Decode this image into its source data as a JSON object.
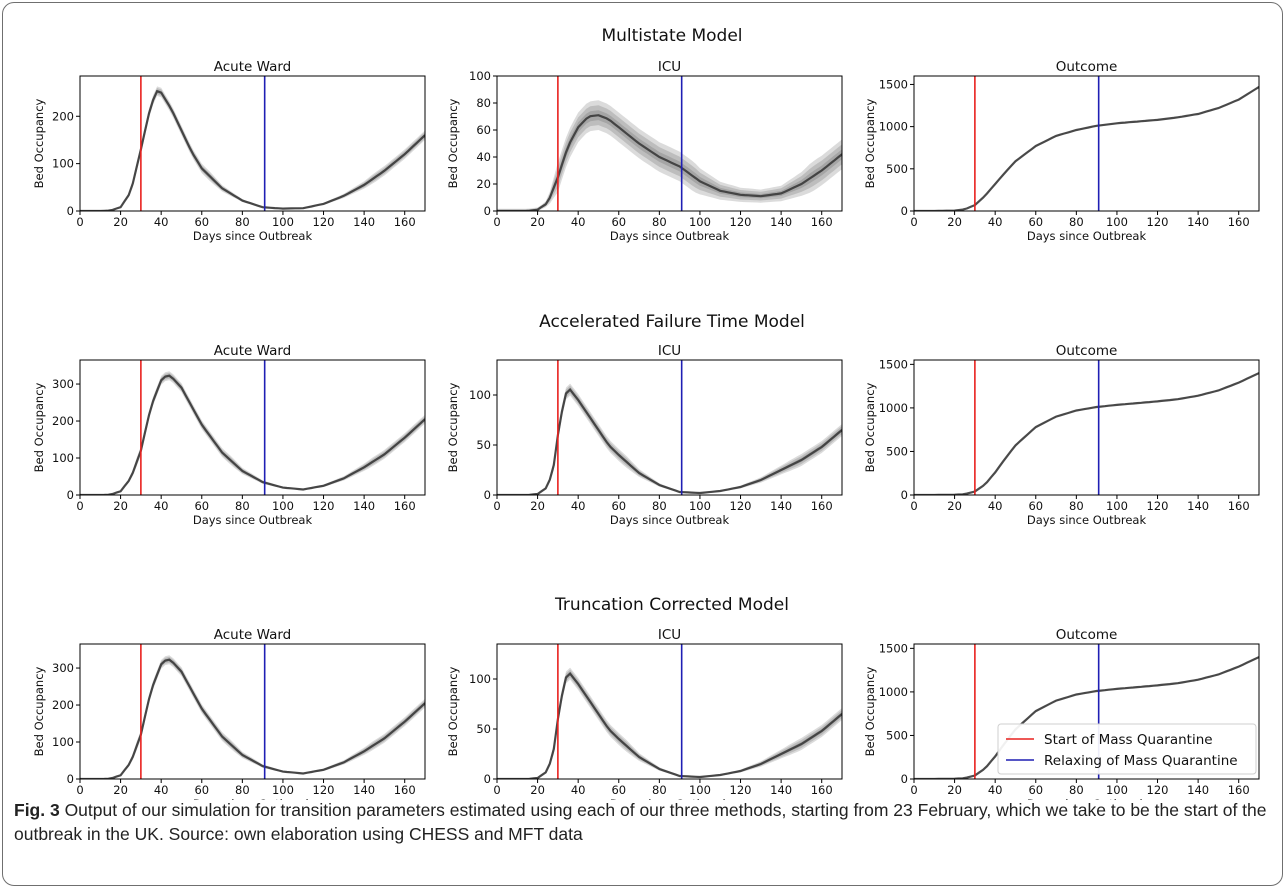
{
  "colors": {
    "trajectory": "#3a3a3a",
    "quarantine_start": "#e8211e",
    "quarantine_relax": "#1f1fb4"
  },
  "legend": {
    "start": "Start of Mass Quarantine",
    "relax": "Relaxing of Mass Quarantine"
  },
  "caption": {
    "label": "Fig. 3",
    "text": " Output of our simulation for transition parameters estimated using each of our three methods, starting from 23 February, which we take to be the start of the outbreak in the UK. Source: own elaboration using CHESS and MFT data"
  },
  "chart_data": [
    {
      "type": "line",
      "group": "Multistate Model",
      "title": "Acute Ward",
      "xlabel": "Days since Outbreak",
      "ylabel": "Bed Occupancy",
      "xlim": [
        0,
        170
      ],
      "ylim": [
        0,
        285
      ],
      "xticks": [
        0,
        20,
        40,
        60,
        80,
        100,
        120,
        140,
        160
      ],
      "yticks": [
        0,
        100,
        200
      ],
      "vlines": [
        30,
        91
      ],
      "spread": 10,
      "series": [
        {
          "x": [
            0,
            10,
            15,
            20,
            25,
            30,
            35,
            38,
            40,
            45,
            50,
            55,
            60,
            70,
            80,
            90,
            100,
            110,
            120,
            130,
            140,
            150,
            160,
            170
          ],
          "values": [
            0,
            0,
            1,
            8,
            40,
            130,
            225,
            253,
            250,
            215,
            170,
            125,
            90,
            48,
            22,
            8,
            5,
            6,
            15,
            32,
            55,
            85,
            120,
            160
          ]
        }
      ]
    },
    {
      "type": "line",
      "group": "Multistate Model",
      "title": "ICU",
      "xlabel": "Days since Outbreak",
      "ylabel": "Bed Occupancy",
      "xlim": [
        0,
        170
      ],
      "ylim": [
        0,
        100
      ],
      "xticks": [
        0,
        20,
        40,
        60,
        80,
        100,
        120,
        140,
        160
      ],
      "yticks": [
        0,
        20,
        40,
        60,
        80,
        100
      ],
      "vlines": [
        30,
        91
      ],
      "spread": 11,
      "series": [
        {
          "x": [
            0,
            10,
            15,
            20,
            25,
            30,
            35,
            40,
            45,
            50,
            55,
            60,
            70,
            80,
            90,
            100,
            110,
            120,
            130,
            140,
            150,
            160,
            170
          ],
          "values": [
            0,
            0,
            0,
            1,
            6,
            25,
            48,
            62,
            70,
            71,
            68,
            62,
            50,
            40,
            33,
            22,
            15,
            12,
            11,
            13,
            20,
            30,
            42
          ]
        }
      ]
    },
    {
      "type": "line",
      "group": "Multistate Model",
      "title": "Outcome",
      "xlabel": "Days since Outbreak",
      "ylabel": "Bed Occupancy",
      "xlim": [
        0,
        170
      ],
      "ylim": [
        0,
        1600
      ],
      "xticks": [
        0,
        20,
        40,
        60,
        80,
        100,
        120,
        140,
        160
      ],
      "yticks": [
        0,
        500,
        1000,
        1500
      ],
      "vlines": [
        30,
        91
      ],
      "spread": 6,
      "series": [
        {
          "x": [
            0,
            10,
            20,
            25,
            30,
            35,
            40,
            45,
            50,
            60,
            70,
            80,
            90,
            100,
            110,
            120,
            130,
            140,
            150,
            160,
            170
          ],
          "values": [
            0,
            0,
            5,
            20,
            70,
            180,
            320,
            460,
            590,
            770,
            890,
            960,
            1010,
            1040,
            1060,
            1080,
            1110,
            1150,
            1220,
            1320,
            1470
          ]
        }
      ]
    },
    {
      "type": "line",
      "group": "Accelerated Failure Time Model",
      "title": "Acute Ward",
      "xlabel": "Days since Outbreak",
      "ylabel": "Bed Occupancy",
      "xlim": [
        0,
        170
      ],
      "ylim": [
        0,
        365
      ],
      "xticks": [
        0,
        20,
        40,
        60,
        80,
        100,
        120,
        140,
        160
      ],
      "yticks": [
        0,
        100,
        200,
        300
      ],
      "vlines": [
        30,
        91
      ],
      "spread": 12,
      "series": [
        {
          "x": [
            0,
            10,
            15,
            20,
            25,
            30,
            35,
            40,
            43,
            45,
            50,
            55,
            60,
            70,
            80,
            90,
            100,
            110,
            120,
            130,
            140,
            150,
            160,
            170
          ],
          "values": [
            0,
            0,
            1,
            10,
            45,
            120,
            240,
            310,
            325,
            320,
            290,
            240,
            190,
            115,
            65,
            35,
            20,
            15,
            25,
            45,
            75,
            110,
            155,
            205
          ]
        }
      ]
    },
    {
      "type": "line",
      "group": "Accelerated Failure Time Model",
      "title": "ICU",
      "xlabel": "Days since Outbreak",
      "ylabel": "Bed Occupancy",
      "xlim": [
        0,
        170
      ],
      "ylim": [
        0,
        135
      ],
      "xticks": [
        0,
        20,
        40,
        60,
        80,
        100,
        120,
        140,
        160
      ],
      "yticks": [
        0,
        50,
        100
      ],
      "vlines": [
        30,
        91
      ],
      "spread": 6,
      "series": [
        {
          "x": [
            0,
            10,
            15,
            20,
            25,
            28,
            30,
            33,
            35,
            40,
            45,
            50,
            55,
            60,
            70,
            80,
            90,
            100,
            110,
            120,
            130,
            140,
            150,
            160,
            170
          ],
          "values": [
            0,
            0,
            0,
            1,
            8,
            30,
            60,
            95,
            108,
            95,
            80,
            65,
            50,
            40,
            22,
            10,
            3,
            2,
            4,
            8,
            15,
            25,
            35,
            48,
            65
          ]
        }
      ]
    },
    {
      "type": "line",
      "group": "Accelerated Failure Time Model",
      "title": "Outcome",
      "xlabel": "Days since Outbreak",
      "ylabel": "Bed Occupancy",
      "xlim": [
        0,
        170
      ],
      "ylim": [
        0,
        1550
      ],
      "xticks": [
        0,
        20,
        40,
        60,
        80,
        100,
        120,
        140,
        160
      ],
      "yticks": [
        0,
        500,
        1000,
        1500
      ],
      "vlines": [
        30,
        91
      ],
      "spread": 6,
      "series": [
        {
          "x": [
            0,
            10,
            20,
            25,
            30,
            35,
            40,
            45,
            50,
            60,
            70,
            80,
            90,
            100,
            110,
            120,
            130,
            140,
            150,
            160,
            170
          ],
          "values": [
            0,
            0,
            3,
            10,
            40,
            120,
            260,
            420,
            570,
            780,
            900,
            970,
            1010,
            1035,
            1055,
            1075,
            1100,
            1140,
            1200,
            1290,
            1400
          ]
        }
      ]
    },
    {
      "type": "line",
      "group": "Truncation Corrected Model",
      "title": "Acute Ward",
      "xlabel": "Days since Outbreak",
      "ylabel": "Bed Occupancy",
      "xlim": [
        0,
        170
      ],
      "ylim": [
        0,
        365
      ],
      "xticks": [
        0,
        20,
        40,
        60,
        80,
        100,
        120,
        140,
        160
      ],
      "yticks": [
        0,
        100,
        200,
        300
      ],
      "vlines": [
        30,
        91
      ],
      "spread": 12,
      "series": [
        {
          "x": [
            0,
            10,
            15,
            20,
            25,
            30,
            35,
            40,
            43,
            45,
            50,
            55,
            60,
            70,
            80,
            90,
            100,
            110,
            120,
            130,
            140,
            150,
            160,
            170
          ],
          "values": [
            0,
            0,
            1,
            10,
            45,
            120,
            240,
            310,
            325,
            320,
            290,
            240,
            190,
            115,
            65,
            35,
            20,
            15,
            25,
            45,
            75,
            110,
            155,
            205
          ]
        }
      ]
    },
    {
      "type": "line",
      "group": "Truncation Corrected Model",
      "title": "ICU",
      "xlabel": "Days since Outbreak",
      "ylabel": "Bed Occupancy",
      "xlim": [
        0,
        170
      ],
      "ylim": [
        0,
        135
      ],
      "xticks": [
        0,
        20,
        40,
        60,
        80,
        100,
        120,
        140,
        160
      ],
      "yticks": [
        0,
        50,
        100
      ],
      "vlines": [
        30,
        91
      ],
      "spread": 6,
      "series": [
        {
          "x": [
            0,
            10,
            15,
            20,
            25,
            28,
            30,
            33,
            35,
            40,
            45,
            50,
            55,
            60,
            70,
            80,
            90,
            100,
            110,
            120,
            130,
            140,
            150,
            160,
            170
          ],
          "values": [
            0,
            0,
            0,
            1,
            8,
            30,
            60,
            95,
            108,
            95,
            80,
            65,
            50,
            40,
            22,
            10,
            3,
            2,
            4,
            8,
            15,
            25,
            35,
            48,
            65
          ]
        }
      ]
    },
    {
      "type": "line",
      "group": "Truncation Corrected Model",
      "title": "Outcome",
      "xlabel": "Days since Outbreak",
      "ylabel": "Bed Occupancy",
      "xlim": [
        0,
        170
      ],
      "ylim": [
        0,
        1550
      ],
      "xticks": [
        0,
        20,
        40,
        60,
        80,
        100,
        120,
        140,
        160
      ],
      "yticks": [
        0,
        500,
        1000,
        1500
      ],
      "vlines": [
        30,
        91
      ],
      "spread": 6,
      "legend": true,
      "series": [
        {
          "x": [
            0,
            10,
            20,
            25,
            30,
            35,
            40,
            45,
            50,
            60,
            70,
            80,
            90,
            100,
            110,
            120,
            130,
            140,
            150,
            160,
            170
          ],
          "values": [
            0,
            0,
            3,
            10,
            40,
            120,
            260,
            420,
            570,
            780,
            900,
            970,
            1010,
            1035,
            1055,
            1075,
            1100,
            1140,
            1200,
            1290,
            1400
          ]
        }
      ]
    }
  ]
}
